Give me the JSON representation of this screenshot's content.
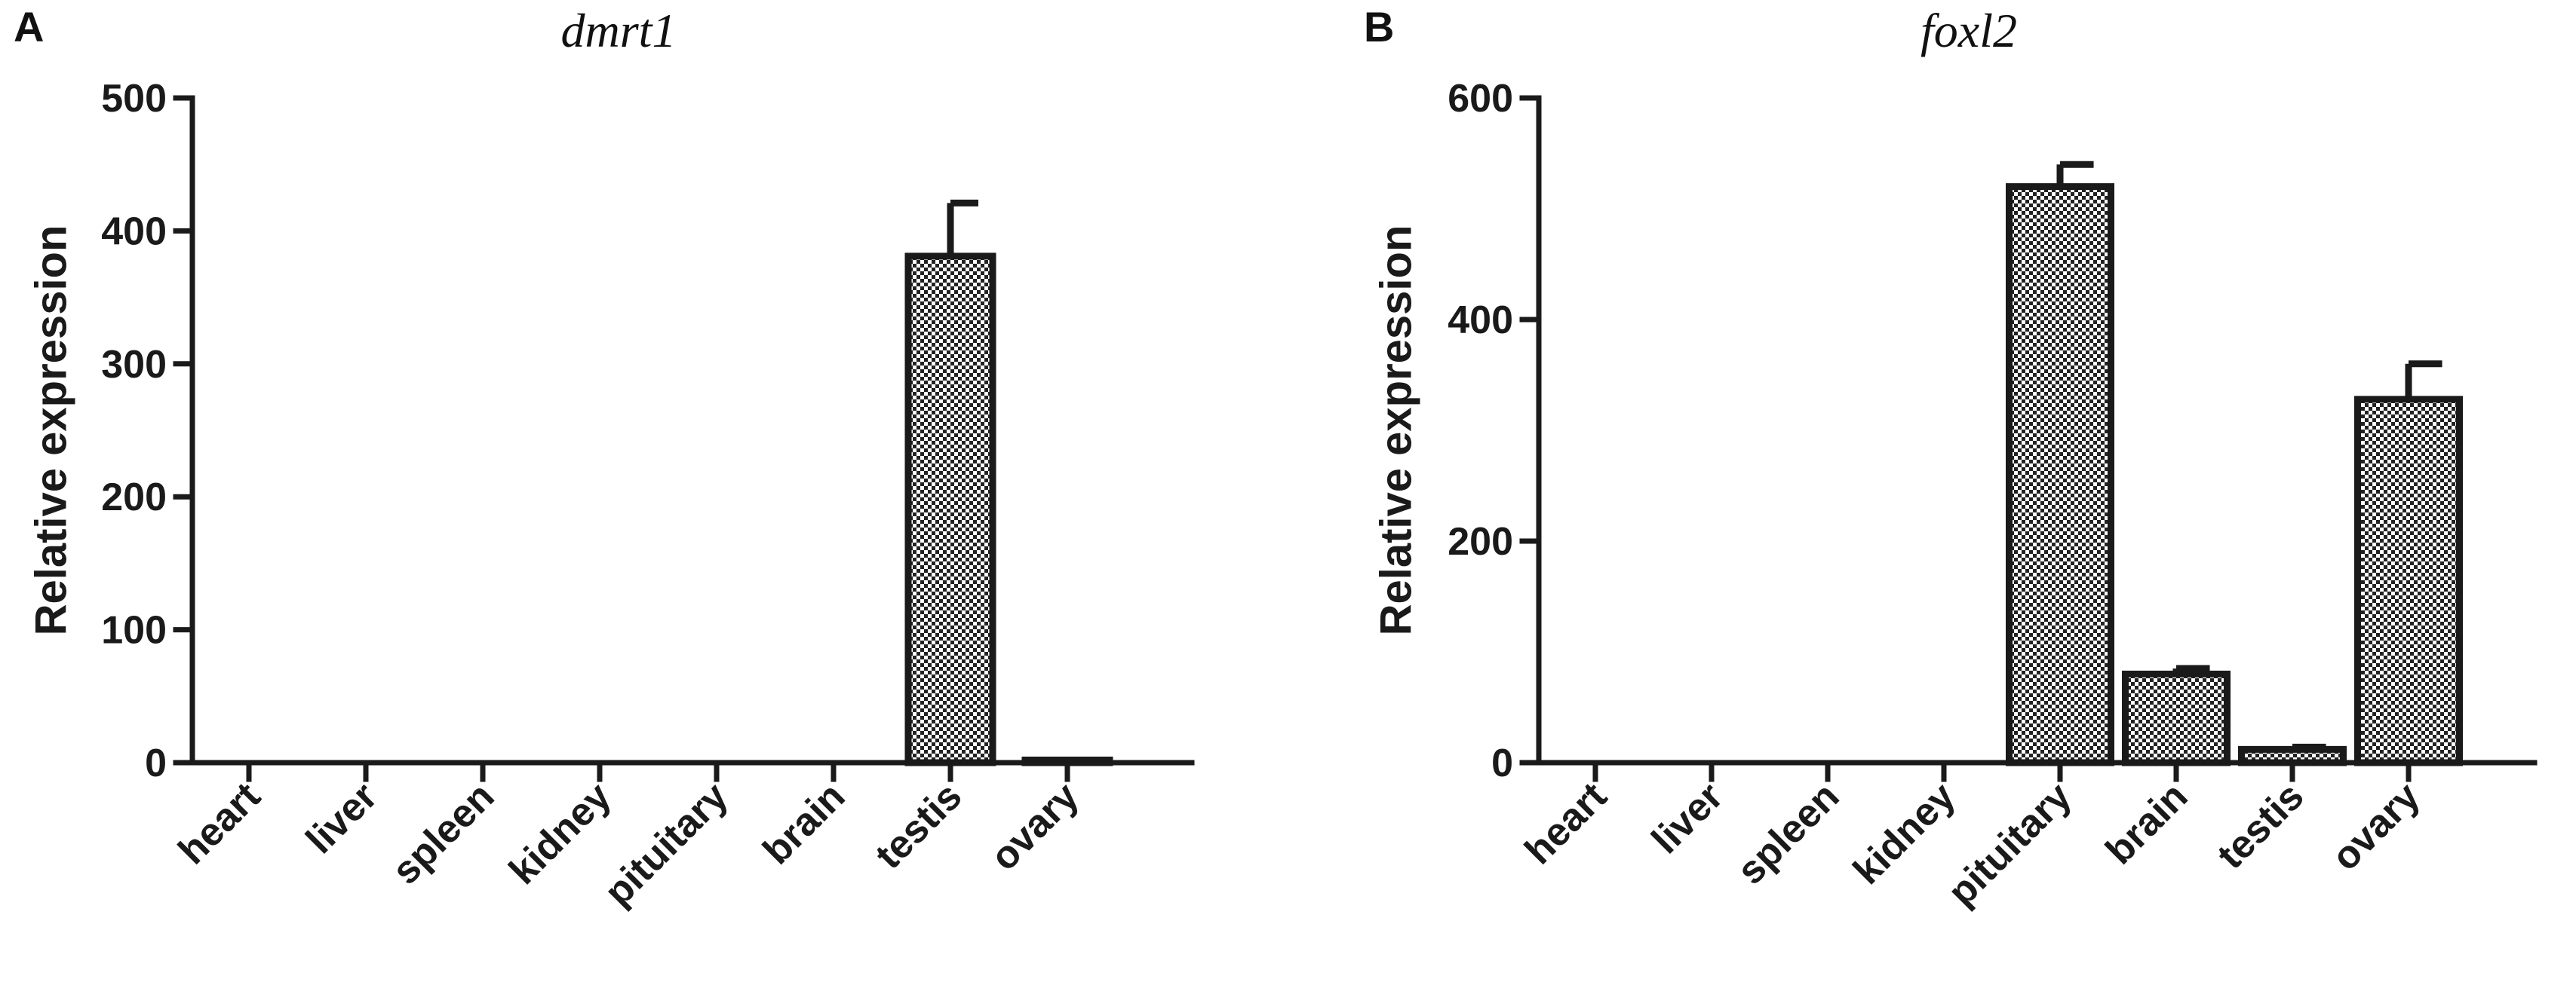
{
  "chart_data": [
    {
      "type": "bar",
      "panel": "A",
      "title": "dmrt1",
      "ylabel": "Relative expression",
      "xlabel": "",
      "categories": [
        "heart",
        "liver",
        "spleen",
        "kidney",
        "pituitary",
        "brain",
        "testis",
        "ovary"
      ],
      "values": [
        0,
        0,
        0,
        0,
        0,
        0,
        381,
        2
      ],
      "error": [
        0,
        0,
        0,
        0,
        0,
        0,
        40,
        0
      ],
      "ylim": [
        0,
        500
      ],
      "yticks": [
        0,
        100,
        200,
        300,
        400,
        500
      ],
      "grid": false
    },
    {
      "type": "bar",
      "panel": "B",
      "title": "foxl2",
      "ylabel": "Relative expression",
      "xlabel": "",
      "categories": [
        "heart",
        "liver",
        "spleen",
        "kidney",
        "pituitary",
        "brain",
        "testis",
        "ovary"
      ],
      "values": [
        0,
        0,
        0,
        0,
        520,
        80,
        12,
        328
      ],
      "error": [
        0,
        0,
        0,
        0,
        20,
        5,
        2,
        32
      ],
      "ylim": [
        0,
        600
      ],
      "yticks": [
        0,
        200,
        400,
        600
      ],
      "grid": false
    }
  ]
}
